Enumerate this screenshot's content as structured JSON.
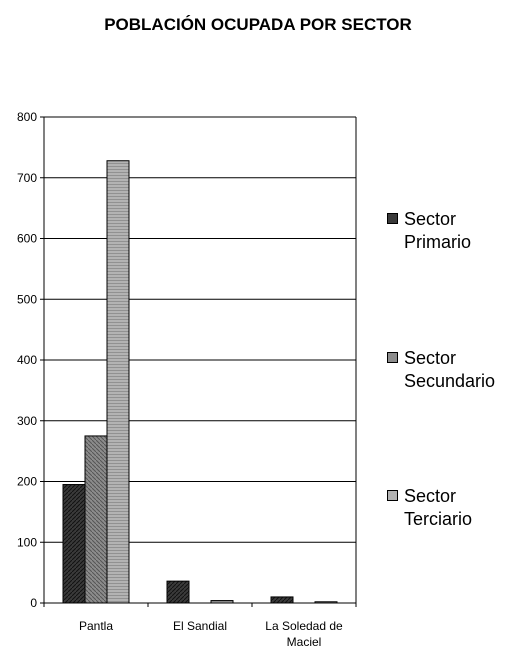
{
  "chart_data": {
    "type": "bar",
    "title": "POBLACIÓN OCUPADA POR SECTOR",
    "categories": [
      "Pantla",
      "El Sandial",
      "La Soledad de Maciel"
    ],
    "category_label_lines": [
      [
        "Pantla"
      ],
      [
        "El Sandial"
      ],
      [
        "La Soledad de",
        "Maciel"
      ]
    ],
    "series": [
      {
        "name": "Sector Primario",
        "name_lines": [
          "Sector",
          "Primario"
        ],
        "values": [
          195,
          36,
          10
        ],
        "color": "#333333"
      },
      {
        "name": "Sector Secundario",
        "name_lines": [
          "Sector",
          "Secundario"
        ],
        "values": [
          275,
          0,
          0
        ],
        "color": "#808080"
      },
      {
        "name": "Sector Terciario",
        "name_lines": [
          "Sector",
          "Terciario"
        ],
        "values": [
          728,
          4,
          2
        ],
        "color": "#a6a6a6"
      }
    ],
    "yticks": [
      0,
      100,
      200,
      300,
      400,
      500,
      600,
      700,
      800
    ],
    "ylim": [
      0,
      800
    ],
    "grid": true,
    "legend_position": "right"
  }
}
